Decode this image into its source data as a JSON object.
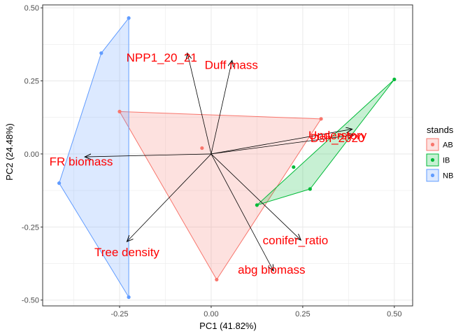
{
  "chart_data": {
    "type": "scatter",
    "subtype": "pca-biplot",
    "title": "",
    "xlabel": "PC1 (41.82%)",
    "ylabel": "PC2 (24.48%)",
    "xlim": [
      -0.46,
      0.55
    ],
    "ylim": [
      -0.52,
      0.51
    ],
    "x_ticks": [
      -0.25,
      0.0,
      0.25,
      0.5
    ],
    "x_tick_labels": [
      "-0.25",
      "0.00",
      "0.25",
      "0.50"
    ],
    "y_ticks": [
      -0.5,
      -0.25,
      0.0,
      0.25,
      0.5
    ],
    "y_tick_labels": [
      "-0.50",
      "-0.25",
      "0.00",
      "0.25",
      "0.50"
    ],
    "grid": true,
    "legend": {
      "title": "stands",
      "position": "right",
      "entries": [
        "AB",
        "IB",
        "NB"
      ]
    },
    "groups": [
      {
        "name": "AB",
        "color": "#F8766D",
        "points": [
          [
            -0.25,
            0.145
          ],
          [
            0.3,
            0.12
          ],
          [
            0.015,
            -0.43
          ],
          [
            -0.025,
            0.02
          ]
        ],
        "hull": [
          [
            -0.25,
            0.145
          ],
          [
            0.3,
            0.12
          ],
          [
            0.015,
            -0.43
          ]
        ]
      },
      {
        "name": "IB",
        "color": "#00BA38",
        "points": [
          [
            0.5,
            0.255
          ],
          [
            0.225,
            -0.045
          ],
          [
            0.27,
            -0.12
          ],
          [
            0.125,
            -0.175
          ]
        ],
        "hull": [
          [
            0.5,
            0.255
          ],
          [
            0.27,
            -0.12
          ],
          [
            0.125,
            -0.175
          ]
        ]
      },
      {
        "name": "NB",
        "color": "#619CFF",
        "points": [
          [
            -0.225,
            0.465
          ],
          [
            -0.3,
            0.345
          ],
          [
            -0.415,
            -0.1
          ],
          [
            -0.225,
            -0.49
          ]
        ],
        "hull": [
          [
            -0.225,
            0.465
          ],
          [
            -0.3,
            0.345
          ],
          [
            -0.415,
            -0.1
          ],
          [
            -0.225,
            -0.49
          ]
        ]
      }
    ],
    "arrow_origin": [
      0.0,
      0.0
    ],
    "arrows": [
      {
        "label": "NPP1_20_21",
        "x": -0.065,
        "y": 0.345,
        "label_x": -0.135,
        "label_y": 0.33
      },
      {
        "label": "Duff mass",
        "x": 0.057,
        "y": 0.32,
        "label_x": 0.055,
        "label_y": 0.305
      },
      {
        "label": "Understory",
        "x": 0.385,
        "y": 0.085,
        "label_x": 0.345,
        "label_y": 0.065
      },
      {
        "label": "Dsh_2020",
        "x": 0.39,
        "y": 0.065,
        "label_x": 0.345,
        "label_y": 0.055
      },
      {
        "label": "FR biomass",
        "x": -0.345,
        "y": -0.01,
        "label_x": -0.355,
        "label_y": -0.025
      },
      {
        "label": "Tree density",
        "x": -0.23,
        "y": -0.3,
        "label_x": -0.23,
        "label_y": -0.335
      },
      {
        "label": "conifer_ratio",
        "x": 0.245,
        "y": -0.295,
        "label_x": 0.23,
        "label_y": -0.295
      },
      {
        "label": "abg biomass",
        "x": 0.17,
        "y": -0.4,
        "label_x": 0.165,
        "label_y": -0.395
      }
    ]
  }
}
